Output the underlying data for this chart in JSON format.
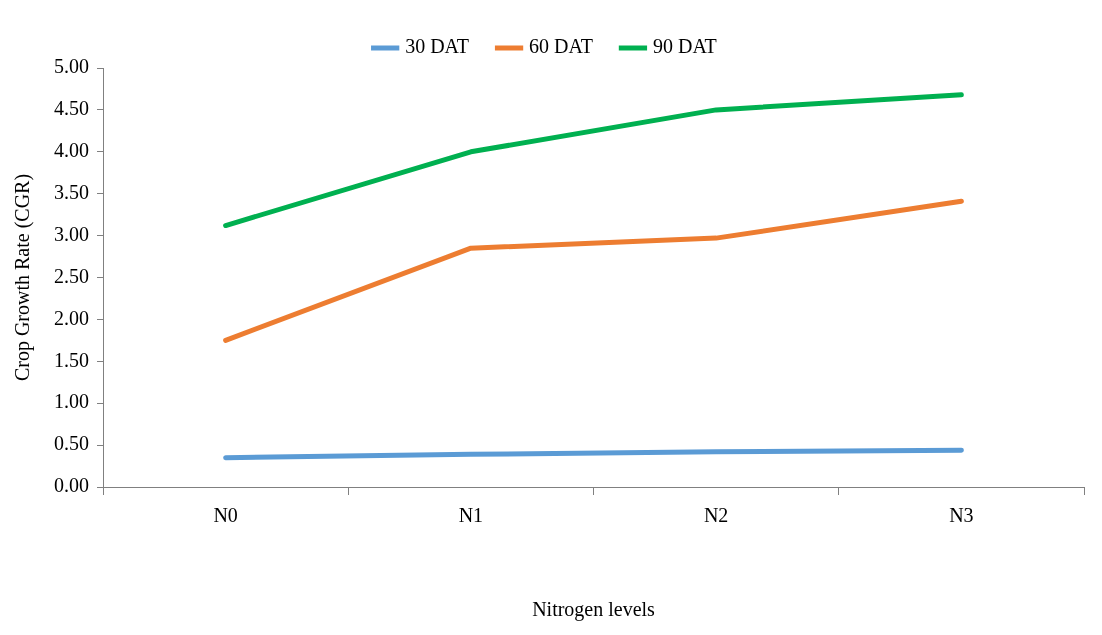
{
  "chart_data": {
    "type": "line",
    "xlabel": "Nitrogen levels",
    "ylabel": "Crop Growth Rate (CGR)",
    "categories": [
      "N0",
      "N1",
      "N2",
      "N3"
    ],
    "series": [
      {
        "name": "30 DAT",
        "color": "#5b9bd5",
        "values": [
          0.35,
          0.39,
          0.42,
          0.44
        ]
      },
      {
        "name": "60 DAT",
        "color": "#ed7d31",
        "values": [
          1.75,
          2.85,
          2.97,
          3.41
        ]
      },
      {
        "name": "90 DAT",
        "color": "#00b050",
        "values": [
          3.12,
          4.0,
          4.5,
          4.68
        ]
      }
    ],
    "ylim": [
      0,
      5
    ],
    "yticks": [
      {
        "value": 0,
        "label": "0.00"
      },
      {
        "value": 0.5,
        "label": "0.50"
      },
      {
        "value": 1,
        "label": "1.00"
      },
      {
        "value": 1.5,
        "label": "1.50"
      },
      {
        "value": 2,
        "label": "2.00"
      },
      {
        "value": 2.5,
        "label": "2.50"
      },
      {
        "value": 3,
        "label": "3.00"
      },
      {
        "value": 3.5,
        "label": "3.50"
      },
      {
        "value": 4,
        "label": "4.00"
      },
      {
        "value": 4.5,
        "label": "4.50"
      },
      {
        "value": 5,
        "label": "5.00"
      }
    ],
    "legend": "top",
    "grid": false,
    "marker": "none",
    "line_style": "solid"
  }
}
